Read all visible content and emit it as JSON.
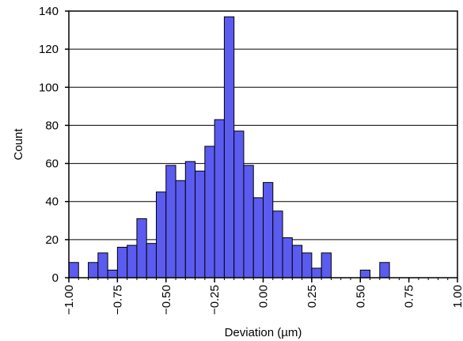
{
  "chart_data": {
    "type": "bar",
    "title": "",
    "xlabel": "Deviation (µm)",
    "ylabel": "Count",
    "bin_width": 0.05,
    "x_bin_left_edges": [
      -1.0,
      -0.95,
      -0.9,
      -0.85,
      -0.8,
      -0.75,
      -0.7,
      -0.65,
      -0.6,
      -0.55,
      -0.5,
      -0.45,
      -0.4,
      -0.35,
      -0.3,
      -0.25,
      -0.2,
      -0.15,
      -0.1,
      -0.05,
      0.0,
      0.05,
      0.1,
      0.15,
      0.2,
      0.25,
      0.3,
      0.35,
      0.4,
      0.45,
      0.5,
      0.55,
      0.6,
      0.65,
      0.7,
      0.75,
      0.8,
      0.85,
      0.9,
      0.95
    ],
    "values": [
      8,
      0,
      8,
      13,
      4,
      16,
      17,
      31,
      18,
      45,
      59,
      51,
      61,
      56,
      69,
      83,
      137,
      77,
      59,
      42,
      50,
      35,
      21,
      17,
      13,
      5,
      13,
      0,
      0,
      0,
      4,
      0,
      8,
      0,
      0,
      0,
      0,
      0,
      0,
      0
    ],
    "xlim": [
      -1.0,
      1.0
    ],
    "ylim": [
      0,
      140
    ],
    "xticks": [
      -1.0,
      -0.75,
      -0.5,
      -0.25,
      0.0,
      0.25,
      0.5,
      0.75,
      1.0
    ],
    "xtick_labels": [
      "−1.00",
      "−0.75",
      "−0.50",
      "−0.25",
      "0.00",
      "0.25",
      "0.50",
      "0.75",
      "1.00"
    ],
    "yticks": [
      0,
      20,
      40,
      60,
      80,
      100,
      120,
      140
    ],
    "ytick_labels": [
      "0",
      "20",
      "40",
      "60",
      "80",
      "100",
      "120",
      "140"
    ],
    "grid": "horizontal",
    "bar_color": "#5b5bf0",
    "bar_edge_color": "#000000"
  }
}
